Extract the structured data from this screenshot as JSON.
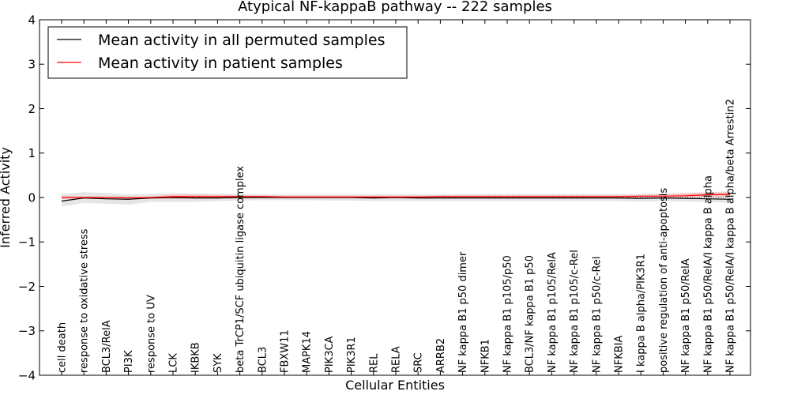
{
  "chart_data": {
    "type": "line",
    "title": "Atypical NF-kappaB pathway -- 222 samples",
    "xlabel": "Cellular Entities",
    "ylabel": "Inferred Activity",
    "ylim": [
      -4,
      4
    ],
    "yticks": [
      -4,
      -3,
      -2,
      -1,
      0,
      1,
      2,
      3,
      4
    ],
    "ytick_labels": [
      "−4",
      "−3",
      "−2",
      "−1",
      "0",
      "1",
      "2",
      "3",
      "4"
    ],
    "grid": false,
    "legend_location": "top-left",
    "categories": [
      "cell death",
      "response to oxidative stress",
      "BCL3/RelA",
      "PI3K",
      "response to UV",
      "LCK",
      "IKBKB",
      "SYK",
      "beta TrCP1/SCF ubiquitin ligase complex",
      "BCL3",
      "FBXW11",
      "MAPK14",
      "PIK3CA",
      "PIK3R1",
      "REL",
      "RELA",
      "SRC",
      "ARRB2",
      "NF kappa B1 p50 dimer",
      "NFKB1",
      "NF kappa B1 p105/p50",
      "BCL3/NF kappa B1 p50",
      "NF kappa B1 p105/RelA",
      "NF kappa B1 p105/c-Rel",
      "NF kappa B1 p50/c-Rel",
      "NFKBIA",
      "I kappa B alpha/PIK3R1",
      "positive regulation of anti-apoptosis",
      "NF kappa B1 p50/RelA",
      "NF kappa B1 p50/RelA/I kappa B alpha",
      "NF kappa B1 p50/RelA/I kappa B alpha/beta Arrestin2"
    ],
    "series": [
      {
        "name": "Mean activity in all permuted samples",
        "color": "#000000",
        "band_color": "#e0e0e0",
        "values": [
          -0.08,
          -0.01,
          -0.03,
          -0.04,
          -0.01,
          0.0,
          -0.01,
          -0.01,
          0.0,
          0.0,
          0.0,
          0.0,
          0.0,
          0.0,
          -0.01,
          0.0,
          -0.01,
          -0.01,
          -0.01,
          -0.01,
          -0.01,
          -0.01,
          -0.01,
          -0.01,
          -0.01,
          -0.01,
          -0.02,
          -0.01,
          -0.02,
          -0.03,
          -0.04
        ],
        "band_low": [
          -0.2,
          -0.12,
          -0.14,
          -0.16,
          -0.1,
          -0.1,
          -0.1,
          -0.08,
          -0.07,
          -0.06,
          -0.06,
          -0.06,
          -0.07,
          -0.07,
          -0.08,
          -0.08,
          -0.08,
          -0.08,
          -0.08,
          -0.08,
          -0.08,
          -0.08,
          -0.08,
          -0.08,
          -0.08,
          -0.08,
          -0.09,
          -0.08,
          -0.09,
          -0.1,
          -0.12
        ],
        "band_high": [
          0.08,
          0.12,
          0.1,
          0.07,
          0.08,
          0.09,
          0.09,
          0.08,
          0.08,
          0.07,
          0.07,
          0.07,
          0.07,
          0.07,
          0.07,
          0.07,
          0.07,
          0.07,
          0.08,
          0.08,
          0.08,
          0.08,
          0.08,
          0.08,
          0.08,
          0.08,
          0.08,
          0.09,
          0.1,
          0.12,
          0.14
        ]
      },
      {
        "name": "Mean activity in patient samples",
        "color": "#ff0000",
        "band_color": "#ffb3b3",
        "values": [
          0.0,
          0.0,
          0.0,
          -0.01,
          0.0,
          0.02,
          0.02,
          0.02,
          0.02,
          0.02,
          0.01,
          0.01,
          0.01,
          0.01,
          0.01,
          0.01,
          0.01,
          0.02,
          0.02,
          0.02,
          0.02,
          0.02,
          0.02,
          0.02,
          0.02,
          0.02,
          0.03,
          0.03,
          0.04,
          0.06,
          0.07
        ],
        "band_low": [
          -0.03,
          -0.02,
          -0.02,
          -0.03,
          -0.02,
          -0.03,
          -0.03,
          -0.02,
          -0.01,
          -0.01,
          -0.01,
          -0.01,
          -0.01,
          -0.01,
          -0.01,
          -0.01,
          -0.01,
          -0.01,
          0.0,
          0.0,
          0.0,
          0.0,
          0.0,
          0.0,
          0.0,
          0.0,
          0.0,
          0.0,
          0.01,
          0.02,
          0.02
        ],
        "band_high": [
          0.03,
          0.02,
          0.02,
          0.01,
          0.02,
          0.07,
          0.07,
          0.06,
          0.05,
          0.05,
          0.04,
          0.04,
          0.04,
          0.04,
          0.04,
          0.04,
          0.04,
          0.05,
          0.05,
          0.05,
          0.05,
          0.05,
          0.05,
          0.05,
          0.05,
          0.05,
          0.06,
          0.07,
          0.09,
          0.11,
          0.12
        ]
      }
    ]
  }
}
